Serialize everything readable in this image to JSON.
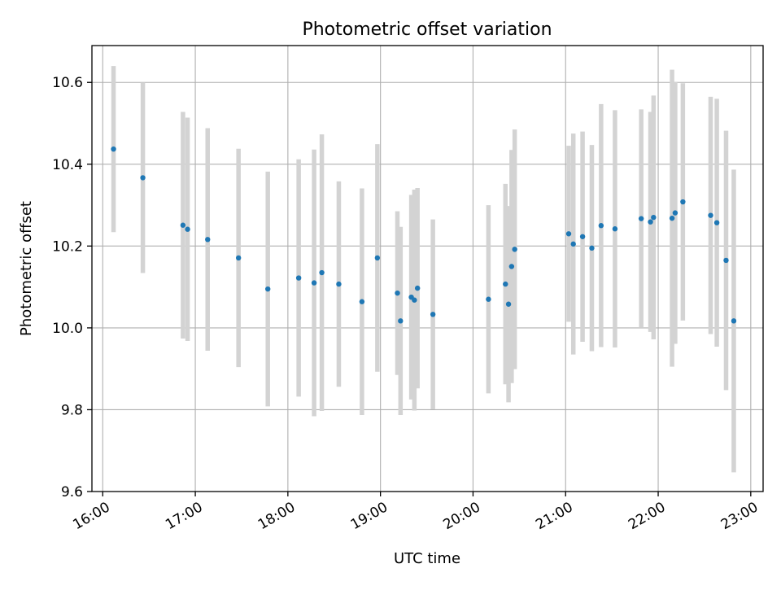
{
  "chart_data": {
    "type": "scatter",
    "title": "Photometric offset variation",
    "xlabel": "UTC time",
    "ylabel": "Photometric offset",
    "x_is_time": true,
    "xlim": [
      "15:53",
      "23:08"
    ],
    "ylim": [
      9.6,
      10.69
    ],
    "xticks": [
      "16:00",
      "17:00",
      "18:00",
      "19:00",
      "20:00",
      "21:00",
      "22:00",
      "23:00"
    ],
    "yticks": [
      9.6,
      9.8,
      10.0,
      10.2,
      10.4,
      10.6
    ],
    "ytick_labels": [
      "9.6",
      "9.8",
      "10.0",
      "10.2",
      "10.4",
      "10.6"
    ],
    "grid": true,
    "point_color": "#1f77b4",
    "errorbar_color": "#d3d3d3",
    "points": [
      {
        "x": "16:07",
        "y": 10.437,
        "err": 0.203
      },
      {
        "x": "16:26",
        "y": 10.367,
        "err": 0.233
      },
      {
        "x": "16:52",
        "y": 10.251,
        "err": 0.277
      },
      {
        "x": "16:55",
        "y": 10.241,
        "err": 0.273
      },
      {
        "x": "17:08",
        "y": 10.216,
        "err": 0.272
      },
      {
        "x": "17:28",
        "y": 10.171,
        "err": 0.267
      },
      {
        "x": "17:47",
        "y": 10.095,
        "err": 0.287
      },
      {
        "x": "18:07",
        "y": 10.122,
        "err": 0.29
      },
      {
        "x": "18:17",
        "y": 10.11,
        "err": 0.326
      },
      {
        "x": "18:22",
        "y": 10.135,
        "err": 0.338
      },
      {
        "x": "18:33",
        "y": 10.107,
        "err": 0.251
      },
      {
        "x": "18:48",
        "y": 10.064,
        "err": 0.277
      },
      {
        "x": "18:58",
        "y": 10.171,
        "err": 0.278
      },
      {
        "x": "19:11",
        "y": 10.085,
        "err": 0.2
      },
      {
        "x": "19:13",
        "y": 10.017,
        "err": 0.23
      },
      {
        "x": "19:20",
        "y": 10.075,
        "err": 0.25
      },
      {
        "x": "19:22",
        "y": 10.068,
        "err": 0.27
      },
      {
        "x": "19:24",
        "y": 10.097,
        "err": 0.245
      },
      {
        "x": "19:34",
        "y": 10.033,
        "err": 0.232
      },
      {
        "x": "20:10",
        "y": 10.07,
        "err": 0.23
      },
      {
        "x": "20:21",
        "y": 10.107,
        "err": 0.245
      },
      {
        "x": "20:23",
        "y": 10.058,
        "err": 0.24
      },
      {
        "x": "20:25",
        "y": 10.15,
        "err": 0.285
      },
      {
        "x": "20:27",
        "y": 10.192,
        "err": 0.293
      },
      {
        "x": "21:02",
        "y": 10.23,
        "err": 0.215
      },
      {
        "x": "21:05",
        "y": 10.205,
        "err": 0.27
      },
      {
        "x": "21:11",
        "y": 10.223,
        "err": 0.257
      },
      {
        "x": "21:17",
        "y": 10.195,
        "err": 0.252
      },
      {
        "x": "21:23",
        "y": 10.25,
        "err": 0.297
      },
      {
        "x": "21:32",
        "y": 10.242,
        "err": 0.29
      },
      {
        "x": "21:49",
        "y": 10.267,
        "err": 0.267
      },
      {
        "x": "21:55",
        "y": 10.259,
        "err": 0.269
      },
      {
        "x": "21:57",
        "y": 10.27,
        "err": 0.298
      },
      {
        "x": "22:09",
        "y": 10.268,
        "err": 0.363
      },
      {
        "x": "22:11",
        "y": 10.281,
        "err": 0.32
      },
      {
        "x": "22:16",
        "y": 10.308,
        "err": 0.29
      },
      {
        "x": "22:34",
        "y": 10.275,
        "err": 0.29
      },
      {
        "x": "22:38",
        "y": 10.257,
        "err": 0.303
      },
      {
        "x": "22:44",
        "y": 10.165,
        "err": 0.317
      },
      {
        "x": "22:49",
        "y": 10.017,
        "err": 0.37
      }
    ]
  }
}
